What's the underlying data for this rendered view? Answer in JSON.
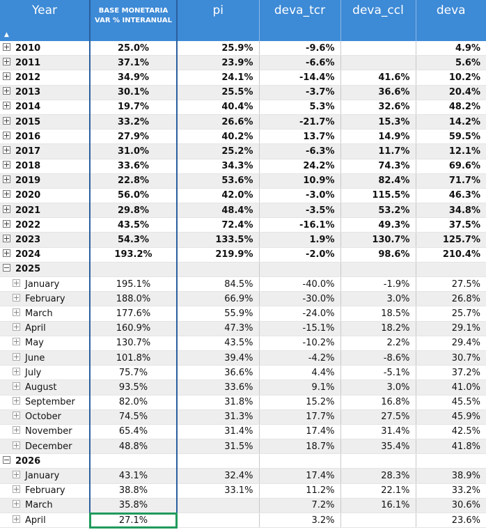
{
  "headers": [
    "Year",
    "BASE MONETARIA VAR % INTERANUAL",
    "pi",
    "deva_tcr",
    "deva_ccl",
    "deva"
  ],
  "sort_indicator": "▲",
  "rows": [
    {
      "kind": "year",
      "label": "2010",
      "expanded": false,
      "values": [
        "25.0%",
        "25.9%",
        "-9.6%",
        "",
        "4.9%"
      ]
    },
    {
      "kind": "year",
      "label": "2011",
      "expanded": false,
      "values": [
        "37.1%",
        "23.9%",
        "-6.6%",
        "",
        "5.6%"
      ]
    },
    {
      "kind": "year",
      "label": "2012",
      "expanded": false,
      "values": [
        "34.9%",
        "24.1%",
        "-14.4%",
        "41.6%",
        "10.2%"
      ]
    },
    {
      "kind": "year",
      "label": "2013",
      "expanded": false,
      "values": [
        "30.1%",
        "25.5%",
        "-3.7%",
        "36.6%",
        "20.4%"
      ]
    },
    {
      "kind": "year",
      "label": "2014",
      "expanded": false,
      "values": [
        "19.7%",
        "40.4%",
        "5.3%",
        "32.6%",
        "48.2%"
      ]
    },
    {
      "kind": "year",
      "label": "2015",
      "expanded": false,
      "values": [
        "33.2%",
        "26.6%",
        "-21.7%",
        "15.3%",
        "14.2%"
      ]
    },
    {
      "kind": "year",
      "label": "2016",
      "expanded": false,
      "values": [
        "27.9%",
        "40.2%",
        "13.7%",
        "14.9%",
        "59.5%"
      ]
    },
    {
      "kind": "year",
      "label": "2017",
      "expanded": false,
      "values": [
        "31.0%",
        "25.2%",
        "-6.3%",
        "11.7%",
        "12.1%"
      ]
    },
    {
      "kind": "year",
      "label": "2018",
      "expanded": false,
      "values": [
        "33.6%",
        "34.3%",
        "24.2%",
        "74.3%",
        "69.6%"
      ]
    },
    {
      "kind": "year",
      "label": "2019",
      "expanded": false,
      "values": [
        "22.8%",
        "53.6%",
        "10.9%",
        "82.4%",
        "71.7%"
      ]
    },
    {
      "kind": "year",
      "label": "2020",
      "expanded": false,
      "values": [
        "56.0%",
        "42.0%",
        "-3.0%",
        "115.5%",
        "46.3%"
      ]
    },
    {
      "kind": "year",
      "label": "2021",
      "expanded": false,
      "values": [
        "29.8%",
        "48.4%",
        "-3.5%",
        "53.2%",
        "34.8%"
      ]
    },
    {
      "kind": "year",
      "label": "2022",
      "expanded": false,
      "values": [
        "43.5%",
        "72.4%",
        "-16.1%",
        "49.3%",
        "37.5%"
      ]
    },
    {
      "kind": "year",
      "label": "2023",
      "expanded": false,
      "values": [
        "54.3%",
        "133.5%",
        "1.9%",
        "130.7%",
        "125.7%"
      ]
    },
    {
      "kind": "year",
      "label": "2024",
      "expanded": false,
      "values": [
        "193.2%",
        "219.9%",
        "-2.0%",
        "98.6%",
        "210.4%"
      ]
    },
    {
      "kind": "year",
      "label": "2025",
      "expanded": true,
      "values": [
        "",
        "",
        "",
        "",
        ""
      ]
    },
    {
      "kind": "month",
      "label": "January",
      "values": [
        "195.1%",
        "84.5%",
        "-40.0%",
        "-1.9%",
        "27.5%"
      ]
    },
    {
      "kind": "month",
      "label": "February",
      "values": [
        "188.0%",
        "66.9%",
        "-30.0%",
        "3.0%",
        "26.8%"
      ]
    },
    {
      "kind": "month",
      "label": "March",
      "values": [
        "177.6%",
        "55.9%",
        "-24.0%",
        "18.5%",
        "25.7%"
      ]
    },
    {
      "kind": "month",
      "label": "April",
      "values": [
        "160.9%",
        "47.3%",
        "-15.1%",
        "18.2%",
        "29.1%"
      ]
    },
    {
      "kind": "month",
      "label": "May",
      "values": [
        "130.7%",
        "43.5%",
        "-10.2%",
        "2.2%",
        "29.4%"
      ]
    },
    {
      "kind": "month",
      "label": "June",
      "values": [
        "101.8%",
        "39.4%",
        "-4.2%",
        "-8.6%",
        "30.7%"
      ]
    },
    {
      "kind": "month",
      "label": "July",
      "values": [
        "75.7%",
        "36.6%",
        "4.4%",
        "-5.1%",
        "37.2%"
      ]
    },
    {
      "kind": "month",
      "label": "August",
      "values": [
        "93.5%",
        "33.6%",
        "9.1%",
        "3.0%",
        "41.0%"
      ]
    },
    {
      "kind": "month",
      "label": "September",
      "values": [
        "82.0%",
        "31.8%",
        "15.2%",
        "16.8%",
        "45.5%"
      ]
    },
    {
      "kind": "month",
      "label": "October",
      "values": [
        "74.5%",
        "31.3%",
        "17.7%",
        "27.5%",
        "45.9%"
      ]
    },
    {
      "kind": "month",
      "label": "November",
      "values": [
        "65.4%",
        "31.4%",
        "17.4%",
        "31.4%",
        "42.5%"
      ]
    },
    {
      "kind": "month",
      "label": "December",
      "values": [
        "48.8%",
        "31.5%",
        "18.7%",
        "35.4%",
        "41.8%"
      ]
    },
    {
      "kind": "year",
      "label": "2026",
      "expanded": true,
      "values": [
        "",
        "",
        "",
        "",
        ""
      ]
    },
    {
      "kind": "month",
      "label": "January",
      "values": [
        "43.1%",
        "32.4%",
        "17.4%",
        "28.3%",
        "38.9%"
      ]
    },
    {
      "kind": "month",
      "label": "February",
      "values": [
        "38.8%",
        "33.1%",
        "11.2%",
        "22.1%",
        "33.2%"
      ]
    },
    {
      "kind": "month",
      "label": "March",
      "values": [
        "35.8%",
        "",
        "7.2%",
        "16.1%",
        "30.6%"
      ]
    },
    {
      "kind": "month",
      "label": "April",
      "values": [
        "27.1%",
        "",
        "3.2%",
        "",
        "23.6%"
      ],
      "selected_col": 0
    }
  ]
}
